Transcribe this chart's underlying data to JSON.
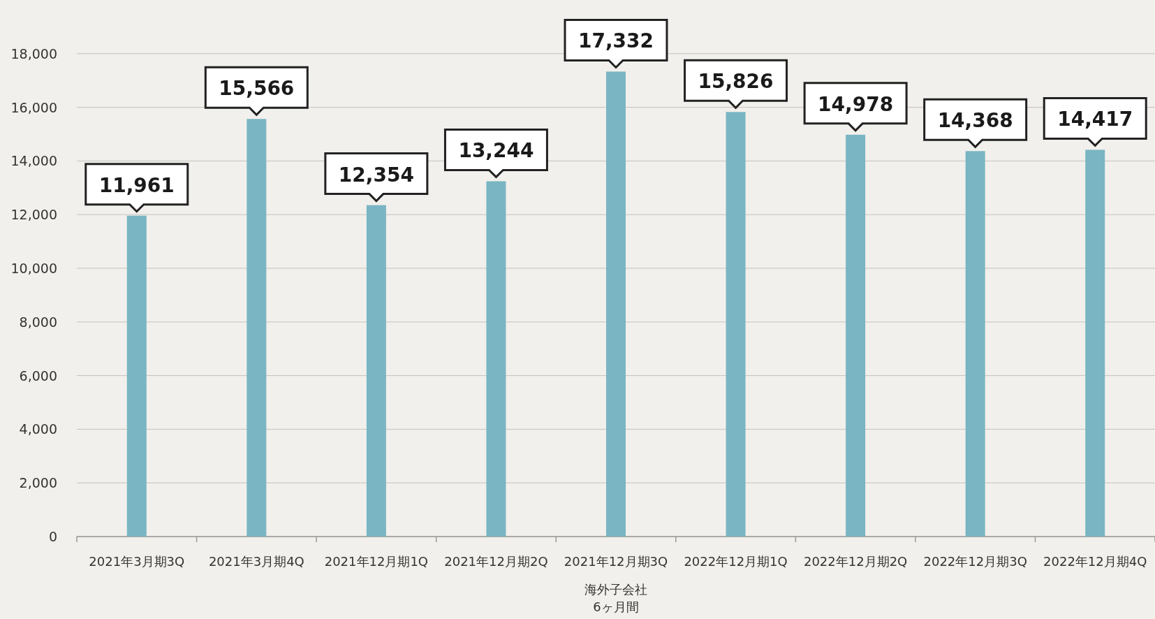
{
  "chart_data": {
    "type": "bar",
    "xlabel": "海外子会社\n6ヶ月間",
    "categories": [
      "2021年3月期3Q",
      "2021年3月期4Q",
      "2021年12月期1Q",
      "2021年12月期2Q",
      "2021年12月期3Q",
      "2022年12月期1Q",
      "2022年12月期2Q",
      "2022年12月期3Q",
      "2022年12月期4Q"
    ],
    "values": [
      11961,
      15566,
      12354,
      13244,
      17332,
      15826,
      14978,
      14368,
      14417
    ],
    "value_labels": [
      "11,961",
      "15,566",
      "12,354",
      "13,244",
      "17,332",
      "15,826",
      "14,978",
      "14,368",
      "14,417"
    ],
    "color": "#7ab5c3",
    "ylim": [
      0,
      20000
    ],
    "yticks": [
      {
        "value": 0,
        "label": "0"
      },
      {
        "value": 2000,
        "label": "2,000"
      },
      {
        "value": 4000,
        "label": "4,000"
      },
      {
        "value": 6000,
        "label": "6,000"
      },
      {
        "value": 8000,
        "label": "8,000"
      },
      {
        "value": 10000,
        "label": "10,000"
      },
      {
        "value": 12000,
        "label": "12,000"
      },
      {
        "value": 14000,
        "label": "14,000"
      },
      {
        "value": 16000,
        "label": "16,000"
      },
      {
        "value": 18000,
        "label": "18,000"
      }
    ],
    "grid": "y"
  }
}
